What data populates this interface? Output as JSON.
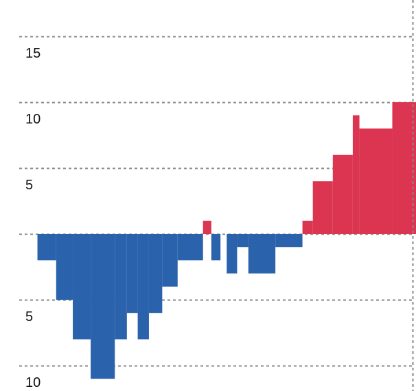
{
  "chart_data": {
    "type": "bar",
    "title": "",
    "xlabel": "",
    "ylabel": "",
    "ylim": [
      -11,
      15
    ],
    "grid": true,
    "gridlines": [
      15,
      10,
      5,
      0,
      -5,
      -10
    ],
    "tick_labels": [
      {
        "value": 15,
        "text": "15"
      },
      {
        "value": 10,
        "text": "10"
      },
      {
        "value": 5,
        "text": "5"
      },
      {
        "value": -5,
        "text": "5"
      },
      {
        "value": -10,
        "text": "10"
      }
    ],
    "colors": {
      "positive": "#dc3551",
      "negative": "#2b62ac",
      "grid": "#888888"
    },
    "bars": [
      {
        "x0": 0.09,
        "x1": 0.135,
        "value": -2
      },
      {
        "x0": 0.135,
        "x1": 0.175,
        "value": -5
      },
      {
        "x0": 0.175,
        "x1": 0.218,
        "value": -8
      },
      {
        "x0": 0.218,
        "x1": 0.276,
        "value": -11
      },
      {
        "x0": 0.276,
        "x1": 0.305,
        "value": -8
      },
      {
        "x0": 0.305,
        "x1": 0.331,
        "value": -6
      },
      {
        "x0": 0.331,
        "x1": 0.358,
        "value": -8
      },
      {
        "x0": 0.358,
        "x1": 0.39,
        "value": -6
      },
      {
        "x0": 0.39,
        "x1": 0.427,
        "value": -4
      },
      {
        "x0": 0.427,
        "x1": 0.488,
        "value": -2
      },
      {
        "x0": 0.488,
        "x1": 0.508,
        "value": 1
      },
      {
        "x0": 0.508,
        "x1": 0.53,
        "value": -2
      },
      {
        "x0": 0.545,
        "x1": 0.57,
        "value": -3
      },
      {
        "x0": 0.57,
        "x1": 0.597,
        "value": -1
      },
      {
        "x0": 0.597,
        "x1": 0.662,
        "value": -3
      },
      {
        "x0": 0.662,
        "x1": 0.727,
        "value": -1
      },
      {
        "x0": 0.727,
        "x1": 0.752,
        "value": 1
      },
      {
        "x0": 0.752,
        "x1": 0.8,
        "value": 4
      },
      {
        "x0": 0.8,
        "x1": 0.848,
        "value": 6
      },
      {
        "x0": 0.848,
        "x1": 0.864,
        "value": 9
      },
      {
        "x0": 0.864,
        "x1": 0.943,
        "value": 8
      },
      {
        "x0": 0.943,
        "x1": 1.0,
        "value": 10
      }
    ]
  }
}
